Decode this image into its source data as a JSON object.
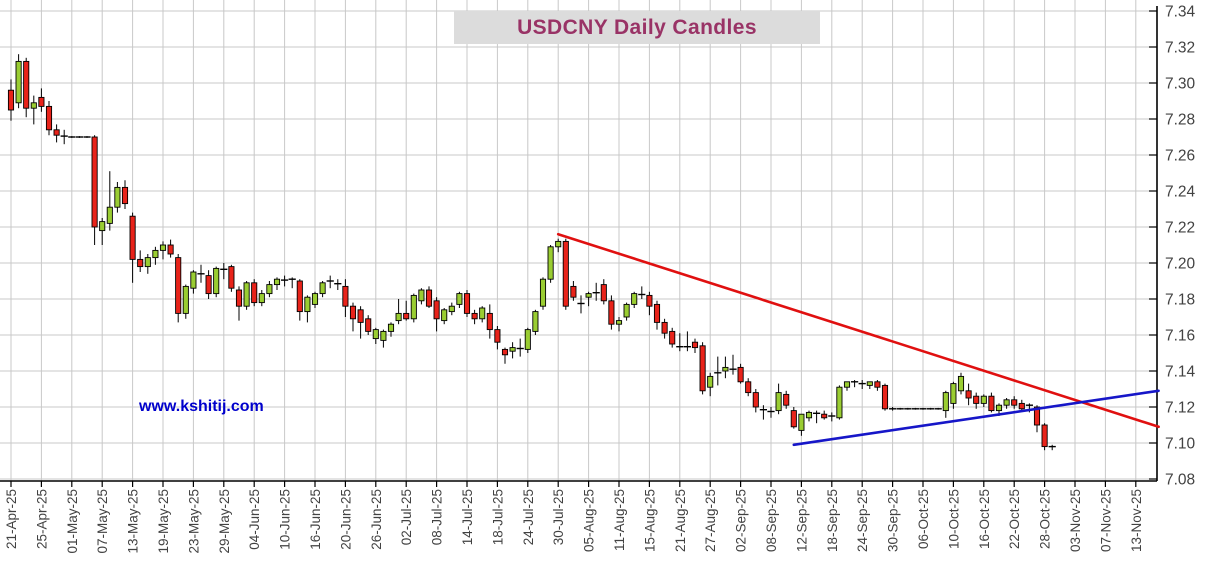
{
  "title": "USDCNY Daily Candles",
  "watermark": "www.kshitij.com",
  "colors": {
    "title_text": "#993366",
    "title_bg": "#dcdcdc",
    "bull_candle": "#9acd32",
    "bear_candle": "#e8231a",
    "candle_outline": "#000000",
    "resistance_line": "#e01010",
    "support_line": "#1616c8",
    "gridline": "#c8c8c8",
    "axis": "#000000",
    "axis_label": "#424242",
    "watermark_text": "#0000cc"
  },
  "y_axis": {
    "min": 7.08,
    "max": 7.34,
    "step": 0.02,
    "ticks": [
      7.34,
      7.32,
      7.3,
      7.28,
      7.26,
      7.24,
      7.22,
      7.2,
      7.18,
      7.16,
      7.14,
      7.12,
      7.1,
      7.08
    ]
  },
  "x_axis": {
    "days_per_label": 4,
    "labels": [
      "21-Apr-25",
      "25-Apr-25",
      "01-May-25",
      "07-May-25",
      "13-May-25",
      "19-May-25",
      "23-May-25",
      "29-May-25",
      "04-Jun-25",
      "10-Jun-25",
      "16-Jun-25",
      "20-Jun-25",
      "26-Jun-25",
      "02-Jul-25",
      "08-Jul-25",
      "14-Jul-25",
      "18-Jul-25",
      "24-Jul-25",
      "30-Jul-25",
      "05-Aug-25",
      "11-Aug-25",
      "15-Aug-25",
      "21-Aug-25",
      "27-Aug-25",
      "02-Sep-25",
      "08-Sep-25",
      "12-Sep-25",
      "18-Sep-25",
      "24-Sep-25",
      "30-Sep-25",
      "06-Oct-25",
      "10-Oct-25",
      "16-Oct-25",
      "22-Oct-25",
      "28-Oct-25",
      "03-Nov-25",
      "07-Nov-25",
      "13-Nov-25"
    ]
  },
  "chart_data": {
    "type": "candlestick",
    "title": "USDCNY Daily Candles",
    "ylim": [
      7.08,
      7.34
    ],
    "grid": true,
    "columns": [
      "date",
      "open",
      "high",
      "low",
      "close"
    ],
    "candles": [
      [
        "21-Apr-25",
        7.296,
        7.302,
        7.279,
        7.285
      ],
      [
        "22-Apr-25",
        7.289,
        7.316,
        7.286,
        7.312
      ],
      [
        "23-Apr-25",
        7.312,
        7.314,
        7.281,
        7.286
      ],
      [
        "24-Apr-25",
        7.286,
        7.293,
        7.277,
        7.289
      ],
      [
        "25-Apr-25",
        7.292,
        7.297,
        7.284,
        7.287
      ],
      [
        "28-Apr-25",
        7.287,
        7.29,
        7.271,
        7.274
      ],
      [
        "29-Apr-25",
        7.274,
        7.277,
        7.267,
        7.271
      ],
      [
        "30-Apr-25",
        7.271,
        7.274,
        7.266,
        7.27
      ],
      [
        "01-May-25",
        7.27,
        7.2705,
        7.2695,
        7.27
      ],
      [
        "02-May-25",
        7.27,
        7.2705,
        7.2695,
        7.27
      ],
      [
        "05-May-25",
        7.27,
        7.2705,
        7.2695,
        7.27
      ],
      [
        "06-May-25",
        7.27,
        7.271,
        7.21,
        7.22
      ],
      [
        "07-May-25",
        7.218,
        7.225,
        7.21,
        7.223
      ],
      [
        "08-May-25",
        7.222,
        7.251,
        7.218,
        7.231
      ],
      [
        "09-May-25",
        7.231,
        7.245,
        7.228,
        7.242
      ],
      [
        "12-May-25",
        7.242,
        7.246,
        7.23,
        7.233
      ],
      [
        "13-May-25",
        7.226,
        7.228,
        7.189,
        7.202
      ],
      [
        "14-May-25",
        7.202,
        7.207,
        7.195,
        7.198
      ],
      [
        "15-May-25",
        7.198,
        7.205,
        7.194,
        7.203
      ],
      [
        "16-May-25",
        7.203,
        7.209,
        7.199,
        7.207
      ],
      [
        "19-May-25",
        7.207,
        7.212,
        7.202,
        7.21
      ],
      [
        "20-May-25",
        7.21,
        7.213,
        7.203,
        7.205
      ],
      [
        "21-May-25",
        7.203,
        7.205,
        7.167,
        7.172
      ],
      [
        "22-May-25",
        7.172,
        7.188,
        7.169,
        7.187
      ],
      [
        "23-May-25",
        7.186,
        7.196,
        7.183,
        7.195
      ],
      [
        "26-May-25",
        7.194,
        7.199,
        7.189,
        7.194
      ],
      [
        "27-May-25",
        7.193,
        7.196,
        7.18,
        7.183
      ],
      [
        "28-May-25",
        7.183,
        7.198,
        7.181,
        7.197
      ],
      [
        "29-May-25",
        7.197,
        7.2,
        7.191,
        7.196
      ],
      [
        "30-May-25",
        7.198,
        7.199,
        7.184,
        7.186
      ],
      [
        "02-Jun-25",
        7.185,
        7.187,
        7.168,
        7.176
      ],
      [
        "03-Jun-25",
        7.176,
        7.19,
        7.174,
        7.189
      ],
      [
        "04-Jun-25",
        7.189,
        7.191,
        7.176,
        7.178
      ],
      [
        "05-Jun-25",
        7.178,
        7.185,
        7.176,
        7.183
      ],
      [
        "06-Jun-25",
        7.183,
        7.19,
        7.181,
        7.188
      ],
      [
        "09-Jun-25",
        7.188,
        7.192,
        7.185,
        7.191
      ],
      [
        "10-Jun-25",
        7.191,
        7.193,
        7.187,
        7.19
      ],
      [
        "11-Jun-25",
        7.191,
        7.192,
        7.186,
        7.191
      ],
      [
        "12-Jun-25",
        7.19,
        7.191,
        7.168,
        7.173
      ],
      [
        "13-Jun-25",
        7.173,
        7.182,
        7.167,
        7.181
      ],
      [
        "16-Jun-25",
        7.177,
        7.184,
        7.175,
        7.183
      ],
      [
        "17-Jun-25",
        7.183,
        7.19,
        7.181,
        7.189
      ],
      [
        "18-Jun-25",
        7.19,
        7.193,
        7.186,
        7.19
      ],
      [
        "19-Jun-25",
        7.189,
        7.191,
        7.185,
        7.188
      ],
      [
        "20-Jun-25",
        7.187,
        7.191,
        7.17,
        7.176
      ],
      [
        "23-Jun-25",
        7.176,
        7.178,
        7.162,
        7.169
      ],
      [
        "24-Jun-25",
        7.174,
        7.176,
        7.158,
        7.167
      ],
      [
        "25-Jun-25",
        7.169,
        7.171,
        7.16,
        7.162
      ],
      [
        "26-Jun-25",
        7.158,
        7.164,
        7.155,
        7.163
      ],
      [
        "27-Jun-25",
        7.157,
        7.163,
        7.153,
        7.162
      ],
      [
        "30-Jun-25",
        7.162,
        7.167,
        7.159,
        7.166
      ],
      [
        "01-Jul-25",
        7.168,
        7.18,
        7.166,
        7.172
      ],
      [
        "02-Jul-25",
        7.172,
        7.179,
        7.168,
        7.169
      ],
      [
        "03-Jul-25",
        7.169,
        7.183,
        7.167,
        7.182
      ],
      [
        "04-Jul-25",
        7.179,
        7.186,
        7.177,
        7.185
      ],
      [
        "07-Jul-25",
        7.185,
        7.187,
        7.175,
        7.176
      ],
      [
        "08-Jul-25",
        7.179,
        7.181,
        7.162,
        7.169
      ],
      [
        "09-Jul-25",
        7.168,
        7.175,
        7.166,
        7.174
      ],
      [
        "10-Jul-25",
        7.173,
        7.178,
        7.171,
        7.176
      ],
      [
        "11-Jul-25",
        7.177,
        7.184,
        7.175,
        7.183
      ],
      [
        "14-Jul-25",
        7.183,
        7.185,
        7.17,
        7.172
      ],
      [
        "15-Jul-25",
        7.172,
        7.174,
        7.166,
        7.169
      ],
      [
        "16-Jul-25",
        7.169,
        7.176,
        7.167,
        7.175
      ],
      [
        "17-Jul-25",
        7.172,
        7.177,
        7.158,
        7.163
      ],
      [
        "18-Jul-25",
        7.163,
        7.165,
        7.152,
        7.156
      ],
      [
        "21-Jul-25",
        7.152,
        7.153,
        7.144,
        7.149
      ],
      [
        "22-Jul-25",
        7.151,
        7.156,
        7.147,
        7.153
      ],
      [
        "23-Jul-25",
        7.153,
        7.158,
        7.148,
        7.152
      ],
      [
        "24-Jul-25",
        7.152,
        7.164,
        7.15,
        7.163
      ],
      [
        "25-Jul-25",
        7.162,
        7.174,
        7.16,
        7.173
      ],
      [
        "28-Jul-25",
        7.176,
        7.192,
        7.174,
        7.191
      ],
      [
        "29-Jul-25",
        7.191,
        7.21,
        7.189,
        7.209
      ],
      [
        "30-Jul-25",
        7.209,
        7.2135,
        7.206,
        7.212
      ],
      [
        "31-Jul-25",
        7.212,
        7.2135,
        7.174,
        7.176
      ],
      [
        "01-Aug-25",
        7.187,
        7.19,
        7.179,
        7.181
      ],
      [
        "04-Aug-25",
        7.177,
        7.182,
        7.172,
        7.178
      ],
      [
        "05-Aug-25",
        7.181,
        7.184,
        7.176,
        7.183
      ],
      [
        "06-Aug-25",
        7.183,
        7.189,
        7.179,
        7.184
      ],
      [
        "07-Aug-25",
        7.188,
        7.191,
        7.177,
        7.179
      ],
      [
        "08-Aug-25",
        7.179,
        7.182,
        7.163,
        7.166
      ],
      [
        "11-Aug-25",
        7.166,
        7.17,
        7.162,
        7.168
      ],
      [
        "12-Aug-25",
        7.17,
        7.178,
        7.168,
        7.177
      ],
      [
        "13-Aug-25",
        7.177,
        7.184,
        7.175,
        7.183
      ],
      [
        "14-Aug-25",
        7.183,
        7.187,
        7.18,
        7.182
      ],
      [
        "15-Aug-25",
        7.182,
        7.184,
        7.171,
        7.176
      ],
      [
        "18-Aug-25",
        7.177,
        7.179,
        7.163,
        7.167
      ],
      [
        "19-Aug-25",
        7.167,
        7.169,
        7.158,
        7.161
      ],
      [
        "20-Aug-25",
        7.162,
        7.164,
        7.153,
        7.155
      ],
      [
        "21-Aug-25",
        7.154,
        7.161,
        7.151,
        7.153
      ],
      [
        "22-Aug-25",
        7.153,
        7.162,
        7.151,
        7.154
      ],
      [
        "25-Aug-25",
        7.156,
        7.158,
        7.15,
        7.153
      ],
      [
        "26-Aug-25",
        7.154,
        7.156,
        7.127,
        7.129
      ],
      [
        "27-Aug-25",
        7.131,
        7.139,
        7.126,
        7.137
      ],
      [
        "28-Aug-25",
        7.139,
        7.148,
        7.132,
        7.139
      ],
      [
        "29-Aug-25",
        7.14,
        7.148,
        7.136,
        7.142
      ],
      [
        "01-Sep-25",
        7.141,
        7.149,
        7.138,
        7.141
      ],
      [
        "02-Sep-25",
        7.142,
        7.144,
        7.133,
        7.134
      ],
      [
        "03-Sep-25",
        7.134,
        7.136,
        7.126,
        7.128
      ],
      [
        "04-Sep-25",
        7.128,
        7.13,
        7.117,
        7.12
      ],
      [
        "05-Sep-25",
        7.119,
        7.121,
        7.113,
        7.118
      ],
      [
        "08-Sep-25",
        7.118,
        7.12,
        7.114,
        7.117
      ],
      [
        "09-Sep-25",
        7.118,
        7.133,
        7.116,
        7.128
      ],
      [
        "10-Sep-25",
        7.127,
        7.129,
        7.119,
        7.121
      ],
      [
        "11-Sep-25",
        7.118,
        7.12,
        7.108,
        7.109
      ],
      [
        "12-Sep-25",
        7.107,
        7.116,
        7.104,
        7.116
      ],
      [
        "15-Sep-25",
        7.114,
        7.118,
        7.112,
        7.117
      ],
      [
        "16-Sep-25",
        7.117,
        7.118,
        7.111,
        7.116
      ],
      [
        "17-Sep-25",
        7.116,
        7.118,
        7.113,
        7.114
      ],
      [
        "18-Sep-25",
        7.115,
        7.117,
        7.112,
        7.115
      ],
      [
        "19-Sep-25",
        7.114,
        7.132,
        7.113,
        7.131
      ],
      [
        "22-Sep-25",
        7.131,
        7.134,
        7.129,
        7.134
      ],
      [
        "23-Sep-25",
        7.134,
        7.135,
        7.131,
        7.134
      ],
      [
        "24-Sep-25",
        7.133,
        7.135,
        7.13,
        7.133
      ],
      [
        "25-Sep-25",
        7.132,
        7.134,
        7.13,
        7.134
      ],
      [
        "26-Sep-25",
        7.134,
        7.135,
        7.129,
        7.131
      ],
      [
        "29-Sep-25",
        7.132,
        7.133,
        7.118,
        7.119
      ],
      [
        "30-Sep-25",
        7.119,
        7.12,
        7.118,
        7.119
      ],
      [
        "01-Oct-25",
        7.119,
        7.1195,
        7.1185,
        7.119
      ],
      [
        "02-Oct-25",
        7.119,
        7.1195,
        7.1185,
        7.119
      ],
      [
        "03-Oct-25",
        7.119,
        7.1195,
        7.1185,
        7.119
      ],
      [
        "06-Oct-25",
        7.119,
        7.1195,
        7.1185,
        7.119
      ],
      [
        "07-Oct-25",
        7.119,
        7.1195,
        7.1185,
        7.119
      ],
      [
        "08-Oct-25",
        7.119,
        7.1195,
        7.1185,
        7.119
      ],
      [
        "09-Oct-25",
        7.118,
        7.129,
        7.114,
        7.128
      ],
      [
        "10-Oct-25",
        7.122,
        7.134,
        7.119,
        7.133
      ],
      [
        "13-Oct-25",
        7.129,
        7.139,
        7.127,
        7.137
      ],
      [
        "14-Oct-25",
        7.129,
        7.133,
        7.121,
        7.125
      ],
      [
        "15-Oct-25",
        7.126,
        7.128,
        7.119,
        7.122
      ],
      [
        "16-Oct-25",
        7.122,
        7.127,
        7.12,
        7.126
      ],
      [
        "17-Oct-25",
        7.126,
        7.128,
        7.117,
        7.118
      ],
      [
        "20-Oct-25",
        7.118,
        7.122,
        7.115,
        7.121
      ],
      [
        "21-Oct-25",
        7.121,
        7.125,
        7.119,
        7.124
      ],
      [
        "22-Oct-25",
        7.124,
        7.126,
        7.119,
        7.121
      ],
      [
        "23-Oct-25",
        7.122,
        7.124,
        7.118,
        7.119
      ],
      [
        "24-Oct-25",
        7.121,
        7.122,
        7.117,
        7.121
      ],
      [
        "27-Oct-25",
        7.12,
        7.121,
        7.106,
        7.11
      ],
      [
        "28-Oct-25",
        7.11,
        7.111,
        7.096,
        7.098
      ],
      [
        "29-Oct-25",
        7.098,
        7.099,
        7.096,
        7.098
      ]
    ],
    "trendlines": [
      {
        "name": "descending-resistance",
        "color": "#e01010",
        "from": {
          "day": 72,
          "price": 7.216
        },
        "to": {
          "day": 151,
          "price": 7.109
        }
      },
      {
        "name": "ascending-support",
        "color": "#1616c8",
        "from": {
          "day": 103,
          "price": 7.099
        },
        "to": {
          "day": 151,
          "price": 7.129
        }
      }
    ],
    "legend_position": "none"
  }
}
